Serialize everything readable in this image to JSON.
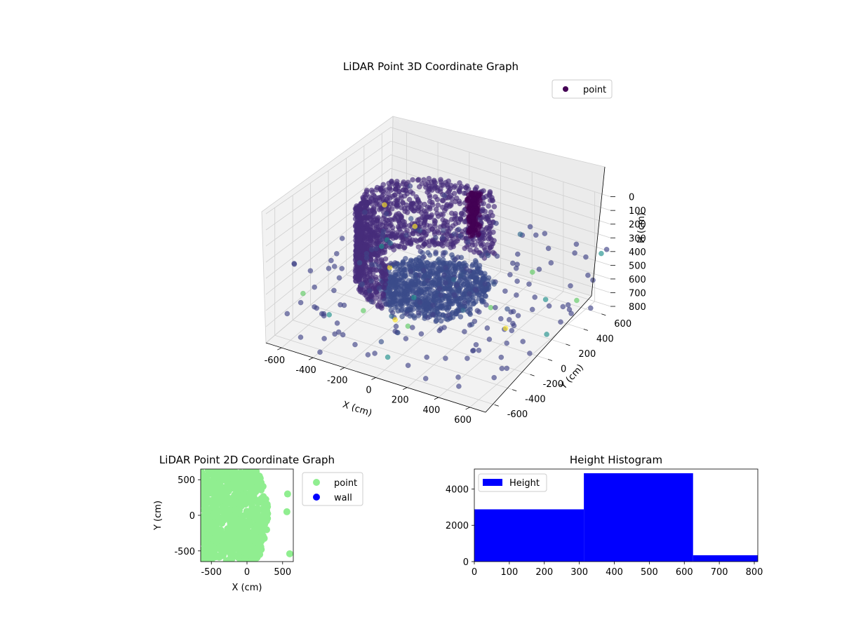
{
  "chart_data": [
    {
      "type": "scatter",
      "title": "LiDAR Point 3D Coordinate Graph",
      "projection": "3d",
      "xlabel": "X (cm)",
      "ylabel": "Y (cm)",
      "zlabel": "H (cm)",
      "xlim": [
        -700,
        700
      ],
      "ylim": [
        -700,
        700
      ],
      "zlim": [
        800,
        0
      ],
      "x_ticks": [
        -600,
        -400,
        -200,
        0,
        200,
        400,
        600
      ],
      "y_ticks": [
        -600,
        -400,
        -200,
        0,
        200,
        400,
        600
      ],
      "z_ticks": [
        0,
        100,
        200,
        300,
        400,
        500,
        600,
        700,
        800
      ],
      "colormap": "viridis",
      "legend": {
        "placement": "top-right",
        "entries": [
          {
            "label": "point",
            "color": "#440154"
          }
        ]
      },
      "grid": true,
      "series": [
        {
          "name": "point",
          "description_values": "dense point cloud: curved wall arc around a central floor mass with sparse outliers"
        }
      ]
    },
    {
      "type": "scatter",
      "title": "LiDAR Point 2D Coordinate Graph",
      "xlabel": "X (cm)",
      "ylabel": "Y (cm)",
      "xlim": [
        -650,
        650
      ],
      "ylim": [
        -650,
        650
      ],
      "x_ticks": [
        -500,
        0,
        500
      ],
      "y_ticks": [
        -500,
        0,
        500
      ],
      "legend": {
        "placement": "outside-right",
        "entries": [
          {
            "label": "point",
            "color": "#90ee90"
          },
          {
            "label": "wall",
            "color": "#0000ff"
          }
        ]
      },
      "series": [
        {
          "name": "point",
          "color": "#90ee90",
          "x_range": [
            -650,
            300
          ],
          "y_range": [
            -650,
            650
          ]
        },
        {
          "name": "wall",
          "color": "#0000ff",
          "points": []
        }
      ]
    },
    {
      "type": "bar",
      "title": "Height Histogram",
      "xlim": [
        0,
        810
      ],
      "ylim": [
        0,
        5100
      ],
      "x_ticks": [
        0,
        100,
        200,
        300,
        400,
        500,
        600,
        700,
        800
      ],
      "y_ticks": [
        0,
        2000,
        4000
      ],
      "legend": {
        "placement": "top-left",
        "entries": [
          {
            "label": "Height",
            "color": "#0000ff"
          }
        ]
      },
      "bins": [
        {
          "x0": 0,
          "x1": 313,
          "count": 2880
        },
        {
          "x0": 313,
          "x1": 625,
          "count": 4870
        },
        {
          "x0": 625,
          "x1": 810,
          "count": 350
        }
      ]
    }
  ]
}
